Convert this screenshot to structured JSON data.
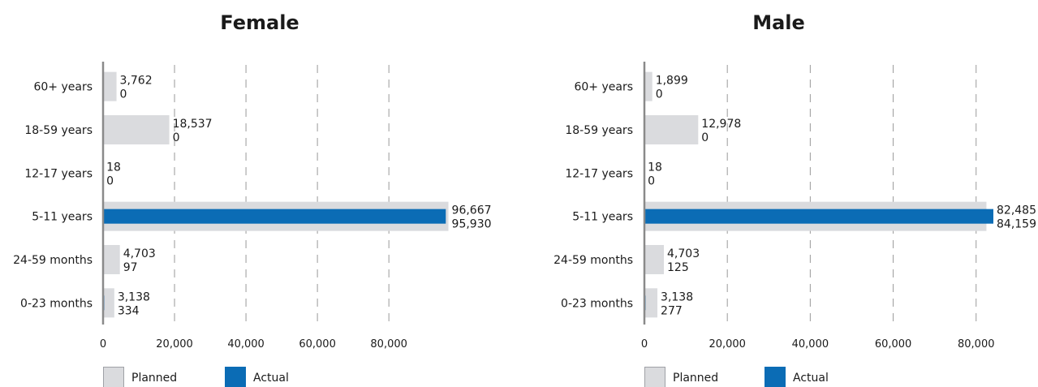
{
  "chart_data": [
    {
      "type": "bar",
      "orientation": "horizontal",
      "title": "Female",
      "categories": [
        "60+ years",
        "18-59 years",
        "12-17 years",
        "5-11 years",
        "24-59 months",
        "0-23 months"
      ],
      "series": [
        {
          "name": "Planned",
          "values": [
            3762,
            18537,
            18,
            96667,
            4703,
            3138
          ],
          "labels": [
            "3,762",
            "18,537",
            "18",
            "96,667",
            "4,703",
            "3,138"
          ]
        },
        {
          "name": "Actual",
          "values": [
            0,
            0,
            0,
            95930,
            97,
            334
          ],
          "labels": [
            "0",
            "0",
            "0",
            "95,930",
            "97",
            "334"
          ]
        }
      ],
      "xlim": [
        0,
        97000
      ],
      "xticks": [
        0,
        20000,
        40000,
        60000,
        80000
      ],
      "xtick_labels": [
        "0",
        "20,000",
        "40,000",
        "60,000",
        "80,000"
      ],
      "grid": "vertical dashed",
      "legend": "bottom-left"
    },
    {
      "type": "bar",
      "orientation": "horizontal",
      "title": "Male",
      "categories": [
        "60+ years",
        "18-59 years",
        "12-17 years",
        "5-11 years",
        "24-59 months",
        "0-23 months"
      ],
      "series": [
        {
          "name": "Planned",
          "values": [
            1899,
            12978,
            18,
            82485,
            4703,
            3138
          ],
          "labels": [
            "1,899",
            "12,978",
            "18",
            "82,485",
            "4,703",
            "3,138"
          ]
        },
        {
          "name": "Actual",
          "values": [
            0,
            0,
            0,
            84159,
            125,
            277
          ],
          "labels": [
            "0",
            "0",
            "0",
            "84,159",
            "125",
            "277"
          ]
        }
      ],
      "xlim": [
        0,
        84159
      ],
      "xticks": [
        0,
        20000,
        40000,
        60000,
        80000
      ],
      "xtick_labels": [
        "0",
        "20,000",
        "40,000",
        "60,000",
        "80,000"
      ],
      "grid": "vertical dashed",
      "legend": "bottom-left"
    }
  ],
  "colors": {
    "planned_fill": "#dadbde",
    "planned_border": "#9fa1a6",
    "actual": "#0b6cb5",
    "axis": "#8a8a8a",
    "grid": "#9a9a9a"
  }
}
